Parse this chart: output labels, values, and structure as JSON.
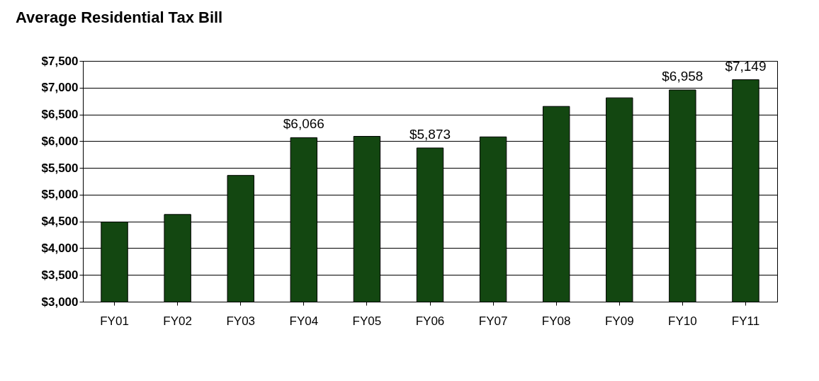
{
  "chart_data": {
    "type": "bar",
    "title": "Average Residential Tax Bill",
    "categories": [
      "FY01",
      "FY02",
      "FY03",
      "FY04",
      "FY05",
      "FY06",
      "FY07",
      "FY08",
      "FY09",
      "FY10",
      "FY11"
    ],
    "values": [
      4490,
      4630,
      5360,
      6066,
      6090,
      5873,
      6080,
      6650,
      6810,
      6958,
      7149
    ],
    "value_labels": [
      null,
      null,
      null,
      "$6,066",
      null,
      "$5,873",
      null,
      null,
      null,
      "$6,958",
      "$7,149"
    ],
    "color": "#134711",
    "ylim": [
      3000,
      7500
    ],
    "yticks": [
      {
        "value": 3000,
        "label": "$3,000"
      },
      {
        "value": 3500,
        "label": "$3,500"
      },
      {
        "value": 4000,
        "label": "$4,000"
      },
      {
        "value": 4500,
        "label": "$4,500"
      },
      {
        "value": 5000,
        "label": "$5,000"
      },
      {
        "value": 5500,
        "label": "$5,500"
      },
      {
        "value": 6000,
        "label": "$6,000"
      },
      {
        "value": 6500,
        "label": "$6,500"
      },
      {
        "value": 7000,
        "label": "$7,000"
      },
      {
        "value": 7500,
        "label": "$7,500"
      }
    ],
    "grid": "y"
  }
}
